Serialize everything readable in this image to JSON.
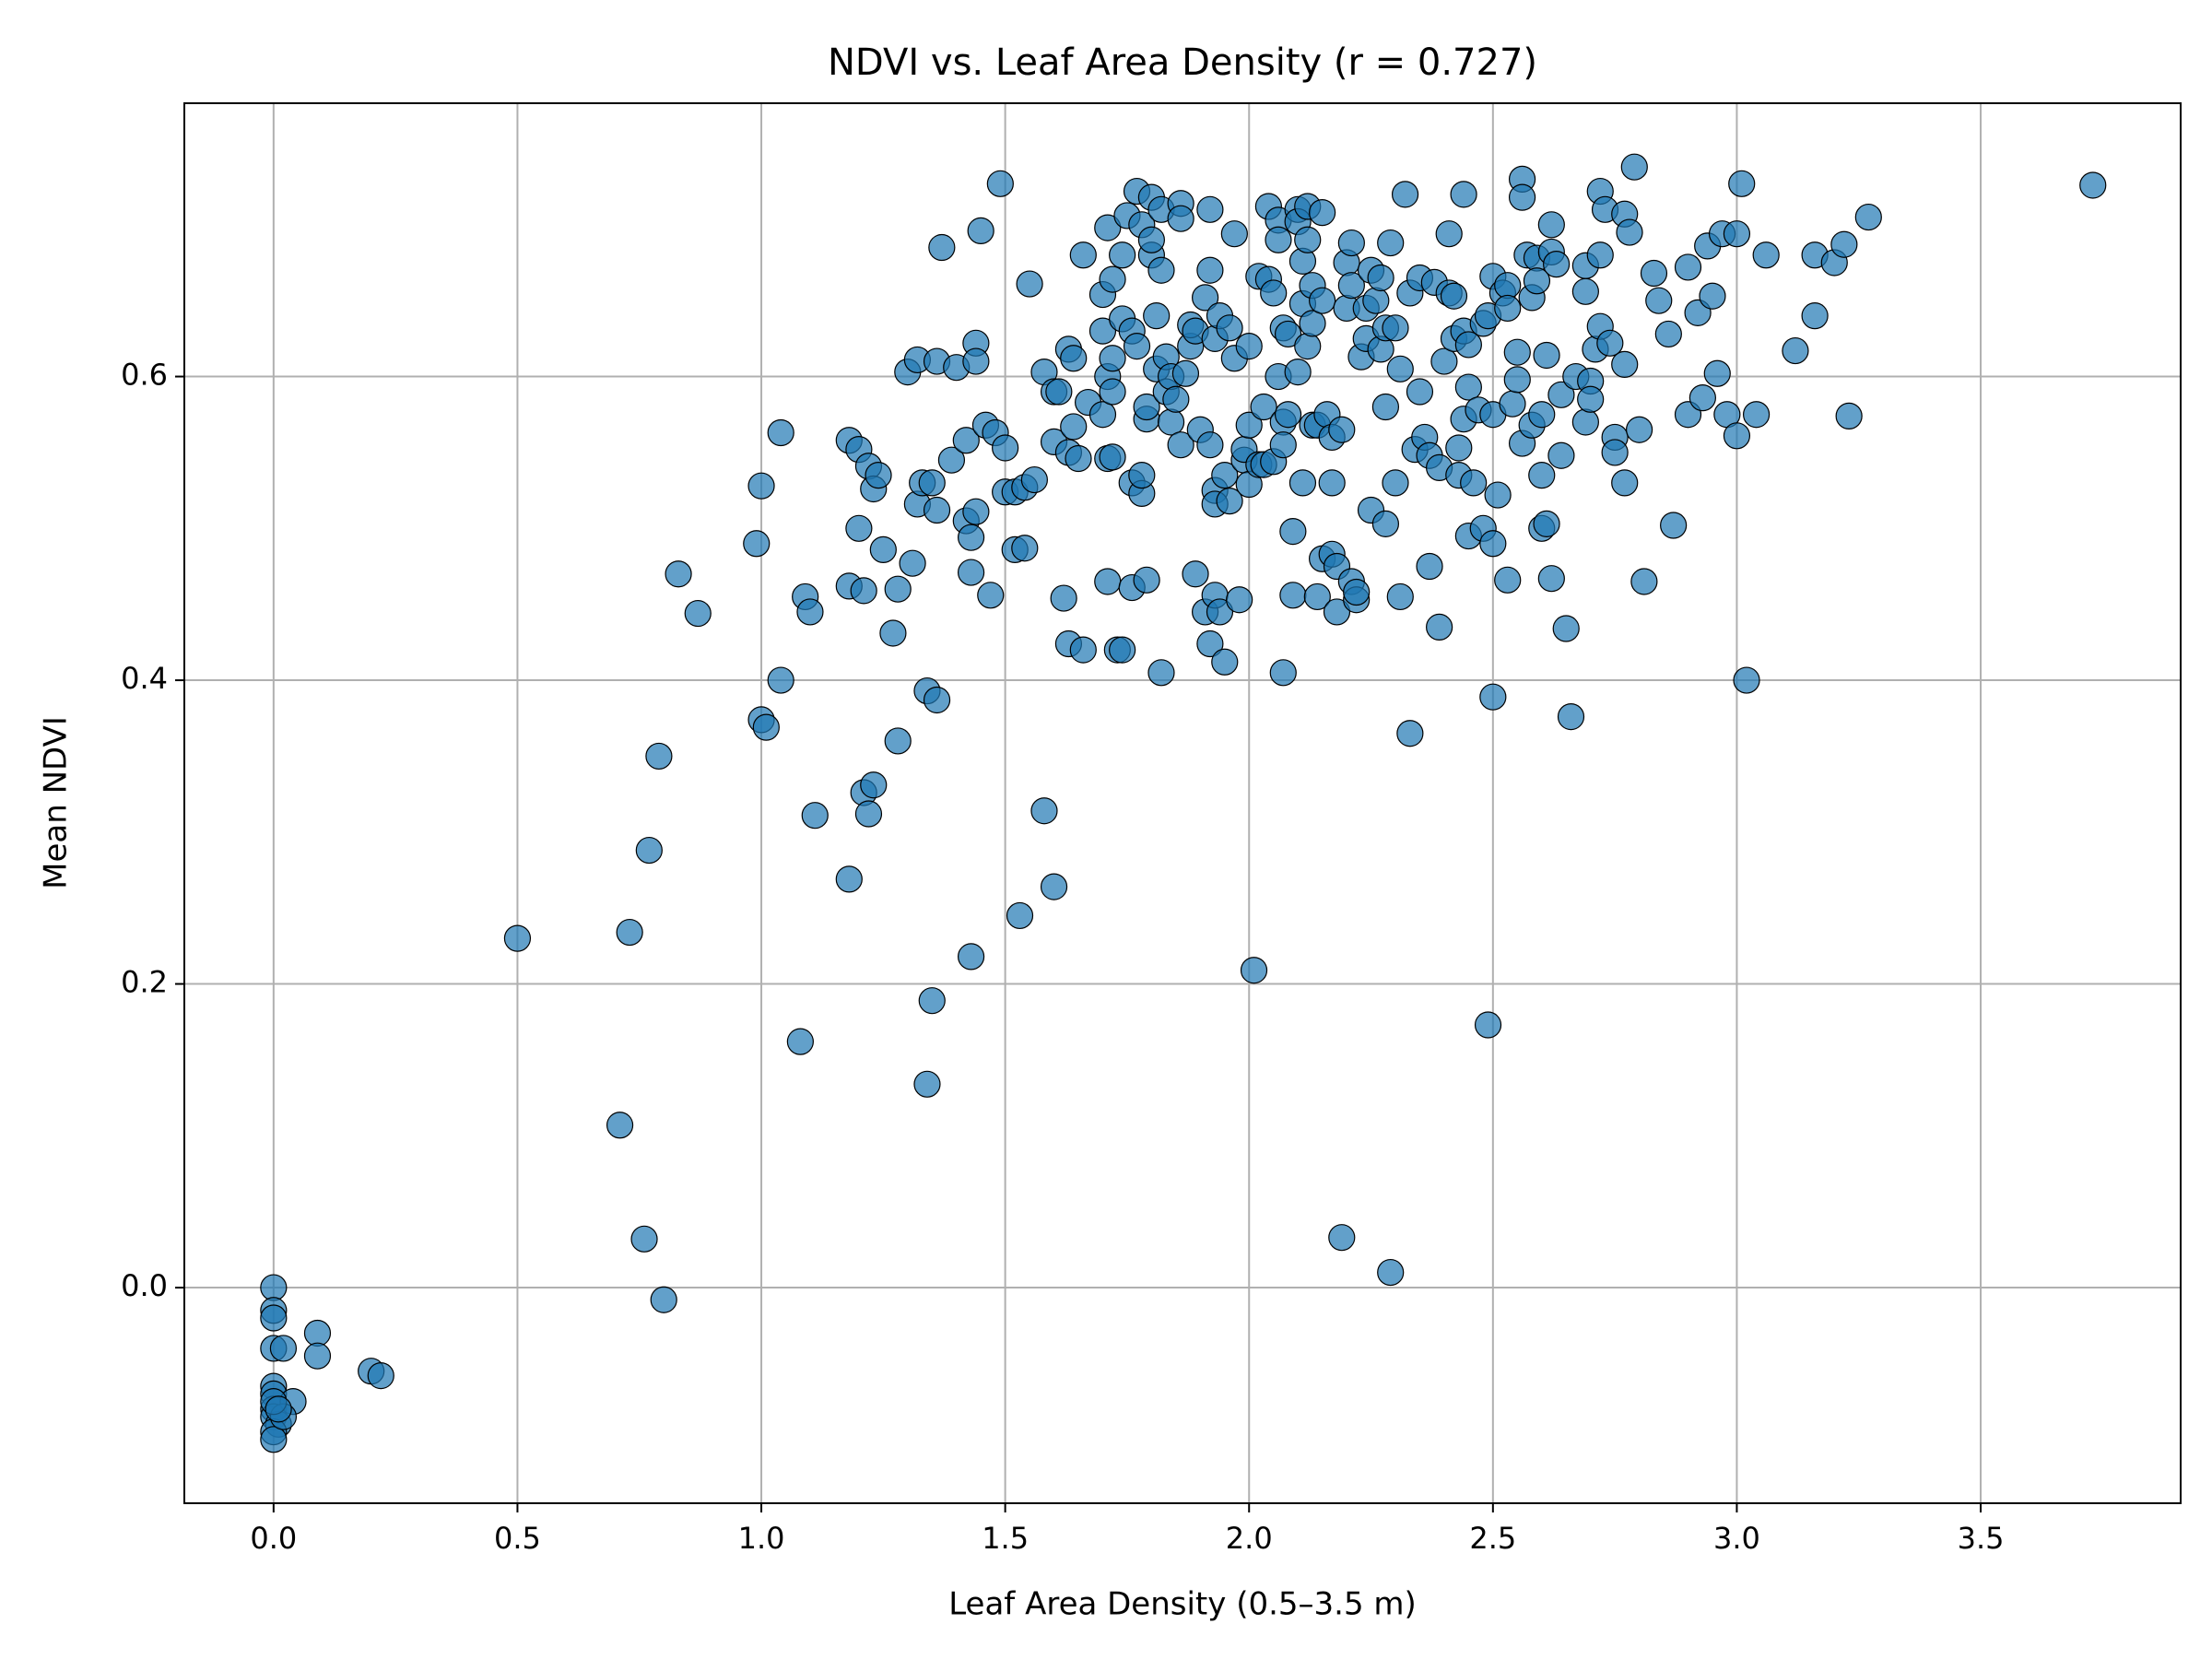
{
  "chart_data": {
    "type": "scatter",
    "title": "NDVI vs. Leaf Area Density (r = 0.727)",
    "x_label": "Leaf Area Density (0.5–3.5 m)",
    "y_label": "Mean NDVI",
    "color": "#1f77b4",
    "grid": true,
    "xlim": [
      -0.183,
      3.91
    ],
    "ylim": [
      -0.142,
      0.78
    ],
    "xticks": [
      {
        "value": 0,
        "label": "0.0"
      },
      0.5,
      {
        "value": 1,
        "label": "1.0"
      },
      1.5,
      {
        "value": 2,
        "label": "2.0"
      },
      2.5,
      {
        "value": 3,
        "label": "3.0"
      },
      3.5
    ],
    "yticks": [
      {
        "value": 0,
        "label": "0.0"
      },
      0.2,
      0.4,
      0.6
    ],
    "x": [
      0,
      0,
      0,
      0,
      0.02,
      0.09,
      0.09,
      0,
      0,
      0,
      0,
      0.01,
      0,
      0,
      0.04,
      0.02,
      0.2,
      0.22,
      0,
      0.01,
      0.5,
      0.73,
      0.71,
      0.76,
      0.8,
      0.77,
      0.79,
      0.83,
      0.87,
      0.99,
      1.0,
      1.0,
      1.01,
      1.04,
      1.04,
      1.08,
      1.09,
      1.1,
      1.11,
      1.18,
      1.18,
      1.18,
      1.2,
      1.2,
      1.21,
      1.21,
      1.22,
      1.22,
      1.23,
      1.23,
      1.24,
      1.25,
      1.27,
      1.28,
      1.28,
      1.3,
      1.31,
      1.32,
      1.32,
      1.33,
      1.34,
      1.34,
      1.35,
      1.35,
      1.36,
      1.36,
      1.36,
      1.37,
      1.39,
      1.4,
      1.42,
      1.42,
      1.43,
      1.43,
      1.43,
      1.44,
      1.44,
      1.44,
      1.45,
      1.46,
      1.47,
      1.48,
      1.49,
      1.5,
      1.5,
      1.52,
      1.52,
      1.53,
      1.54,
      1.54,
      1.55,
      1.56,
      1.58,
      1.58,
      1.6,
      1.6,
      1.6,
      1.61,
      1.62,
      1.63,
      1.63,
      1.63,
      1.64,
      1.64,
      1.65,
      1.66,
      1.66,
      1.67,
      1.7,
      1.7,
      1.7,
      1.71,
      1.71,
      1.71,
      1.71,
      1.72,
      1.72,
      1.72,
      1.72,
      1.73,
      1.74,
      1.74,
      1.74,
      1.75,
      1.76,
      1.76,
      1.76,
      1.77,
      1.77,
      1.78,
      1.78,
      1.78,
      1.79,
      1.79,
      1.79,
      1.8,
      1.8,
      1.8,
      1.81,
      1.81,
      1.82,
      1.82,
      1.82,
      1.83,
      1.83,
      1.84,
      1.84,
      1.85,
      1.86,
      1.86,
      1.86,
      1.87,
      1.88,
      1.88,
      1.89,
      1.89,
      1.9,
      1.91,
      1.91,
      1.92,
      1.92,
      1.92,
      1.92,
      1.93,
      1.93,
      1.93,
      1.93,
      1.94,
      1.94,
      1.95,
      1.95,
      1.96,
      1.96,
      1.97,
      1.97,
      1.98,
      1.99,
      1.99,
      2.0,
      2.0,
      2.0,
      2.01,
      2.02,
      2.02,
      2.03,
      2.03,
      2.04,
      2.04,
      2.05,
      2.05,
      2.06,
      2.06,
      2.06,
      2.07,
      2.07,
      2.07,
      2.07,
      2.08,
      2.08,
      2.09,
      2.09,
      2.1,
      2.1,
      2.1,
      2.11,
      2.11,
      2.11,
      2.12,
      2.12,
      2.12,
      2.13,
      2.13,
      2.13,
      2.14,
      2.14,
      2.15,
      2.15,
      2.15,
      2.16,
      2.17,
      2.17,
      2.17,
      2.18,
      2.18,
      2.19,
      2.19,
      2.2,
      2.2,
      2.21,
      2.21,
      2.21,
      2.22,
      2.22,
      2.23,
      2.24,
      2.24,
      2.25,
      2.25,
      2.26,
      2.27,
      2.27,
      2.28,
      2.28,
      2.28,
      2.29,
      2.29,
      2.3,
      2.3,
      2.31,
      2.31,
      2.32,
      2.33,
      2.33,
      2.34,
      2.35,
      2.35,
      2.36,
      2.37,
      2.37,
      2.38,
      2.39,
      2.39,
      2.4,
      2.41,
      2.41,
      2.42,
      2.42,
      2.43,
      2.43,
      2.44,
      2.44,
      2.44,
      2.45,
      2.45,
      2.45,
      2.46,
      2.47,
      2.48,
      2.48,
      2.49,
      2.49,
      2.5,
      2.5,
      2.5,
      2.5,
      2.51,
      2.52,
      2.53,
      2.53,
      2.53,
      2.54,
      2.55,
      2.55,
      2.56,
      2.56,
      2.56,
      2.57,
      2.58,
      2.58,
      2.59,
      2.59,
      2.6,
      2.6,
      2.6,
      2.61,
      2.61,
      2.62,
      2.62,
      2.62,
      2.63,
      2.64,
      2.64,
      2.65,
      2.66,
      2.67,
      2.69,
      2.69,
      2.69,
      2.7,
      2.7,
      2.71,
      2.72,
      2.72,
      2.72,
      2.73,
      2.74,
      2.75,
      2.75,
      2.77,
      2.77,
      2.77,
      2.78,
      2.79,
      2.8,
      2.81,
      2.83,
      2.84,
      2.86,
      2.87,
      2.9,
      2.9,
      2.92,
      2.93,
      2.94,
      2.95,
      2.96,
      2.97,
      2.98,
      3.0,
      3.0,
      3.01,
      3.02,
      3.04,
      3.06,
      3.12,
      3.16,
      3.16,
      3.2,
      3.22,
      3.23,
      3.27,
      3.73
    ],
    "values": [
      0,
      -0.015,
      -0.02,
      -0.04,
      -0.04,
      -0.03,
      -0.045,
      -0.065,
      -0.07,
      -0.08,
      -0.085,
      -0.09,
      -0.095,
      -0.1,
      -0.075,
      -0.085,
      -0.055,
      -0.058,
      -0.075,
      -0.08,
      0.23,
      0.234,
      0.107,
      0.032,
      -0.008,
      0.288,
      0.35,
      0.47,
      0.444,
      0.49,
      0.528,
      0.374,
      0.369,
      0.4,
      0.563,
      0.162,
      0.455,
      0.445,
      0.311,
      0.269,
      0.558,
      0.462,
      0.552,
      0.5,
      0.326,
      0.459,
      0.541,
      0.312,
      0.526,
      0.331,
      0.535,
      0.486,
      0.431,
      0.36,
      0.46,
      0.603,
      0.477,
      0.611,
      0.516,
      0.53,
      0.393,
      0.134,
      0.189,
      0.53,
      0.387,
      0.512,
      0.61,
      0.685,
      0.545,
      0.606,
      0.558,
      0.505,
      0.218,
      0.494,
      0.471,
      0.622,
      0.61,
      0.511,
      0.696,
      0.568,
      0.456,
      0.563,
      0.727,
      0.553,
      0.524,
      0.524,
      0.486,
      0.245,
      0.487,
      0.527,
      0.661,
      0.532,
      0.603,
      0.314,
      0.264,
      0.557,
      0.59,
      0.59,
      0.454,
      0.424,
      0.618,
      0.55,
      0.567,
      0.612,
      0.546,
      0.68,
      0.42,
      0.583,
      0.654,
      0.63,
      0.575,
      0.546,
      0.698,
      0.6,
      0.465,
      0.59,
      0.612,
      0.664,
      0.547,
      0.42,
      0.42,
      0.68,
      0.638,
      0.706,
      0.461,
      0.63,
      0.53,
      0.722,
      0.62,
      0.7,
      0.523,
      0.535,
      0.572,
      0.58,
      0.466,
      0.718,
      0.68,
      0.69,
      0.64,
      0.605,
      0.405,
      0.71,
      0.67,
      0.59,
      0.613,
      0.57,
      0.6,
      0.585,
      0.714,
      0.704,
      0.555,
      0.602,
      0.62,
      0.634,
      0.63,
      0.47,
      0.565,
      0.652,
      0.445,
      0.424,
      0.71,
      0.67,
      0.555,
      0.525,
      0.625,
      0.456,
      0.516,
      0.64,
      0.445,
      0.412,
      0.535,
      0.632,
      0.518,
      0.694,
      0.612,
      0.453,
      0.545,
      0.552,
      0.529,
      0.568,
      0.62,
      0.209,
      0.666,
      0.542,
      0.542,
      0.58,
      0.712,
      0.664,
      0.655,
      0.544,
      0.703,
      0.69,
      0.6,
      0.632,
      0.57,
      0.555,
      0.405,
      0.575,
      0.628,
      0.498,
      0.456,
      0.71,
      0.702,
      0.603,
      0.676,
      0.53,
      0.648,
      0.712,
      0.69,
      0.62,
      0.635,
      0.568,
      0.66,
      0.568,
      0.455,
      0.708,
      0.65,
      0.48,
      0.575,
      0.56,
      0.53,
      0.483,
      0.445,
      0.475,
      0.033,
      0.565,
      0.675,
      0.645,
      0.66,
      0.688,
      0.465,
      0.453,
      0.458,
      0.613,
      0.625,
      0.645,
      0.67,
      0.512,
      0.65,
      0.665,
      0.618,
      0.58,
      0.632,
      0.503,
      0.688,
      0.01,
      0.53,
      0.632,
      0.455,
      0.605,
      0.72,
      0.365,
      0.655,
      0.552,
      0.665,
      0.59,
      0.56,
      0.548,
      0.475,
      0.662,
      0.54,
      0.435,
      0.61,
      0.694,
      0.655,
      0.625,
      0.653,
      0.553,
      0.535,
      0.72,
      0.63,
      0.572,
      0.621,
      0.593,
      0.495,
      0.53,
      0.578,
      0.635,
      0.5,
      0.173,
      0.64,
      0.666,
      0.49,
      0.575,
      0.389,
      0.522,
      0.655,
      0.66,
      0.645,
      0.466,
      0.582,
      0.598,
      0.616,
      0.73,
      0.718,
      0.556,
      0.68,
      0.568,
      0.652,
      0.678,
      0.663,
      0.535,
      0.575,
      0.5,
      0.503,
      0.614,
      0.682,
      0.7,
      0.467,
      0.674,
      0.588,
      0.548,
      0.434,
      0.376,
      0.6,
      0.673,
      0.57,
      0.656,
      0.597,
      0.585,
      0.618,
      0.68,
      0.722,
      0.633,
      0.71,
      0.622,
      0.56,
      0.55,
      0.707,
      0.608,
      0.53,
      0.695,
      0.738,
      0.565,
      0.465,
      0.668,
      0.65,
      0.628,
      0.502,
      0.575,
      0.672,
      0.642,
      0.586,
      0.686,
      0.653,
      0.602,
      0.694,
      0.575,
      0.694,
      0.561,
      0.727,
      0.4,
      0.575,
      0.68,
      0.617,
      0.68,
      0.64,
      0.675,
      0.687,
      0.574,
      0.705,
      0.726
    ]
  }
}
